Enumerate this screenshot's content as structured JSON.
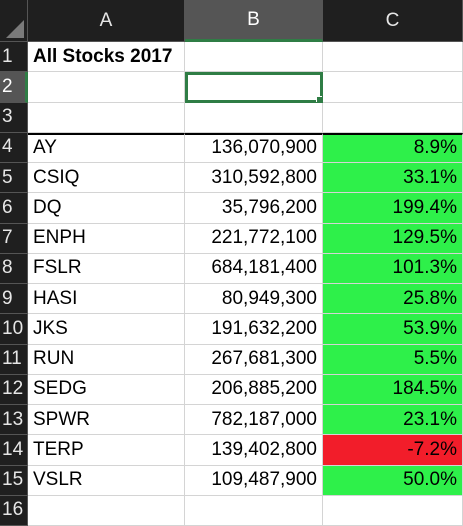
{
  "columns": [
    "A",
    "B",
    "C"
  ],
  "row_numbers": [
    "1",
    "2",
    "3",
    "4",
    "5",
    "6",
    "7",
    "8",
    "9",
    "10",
    "11",
    "12",
    "13",
    "14",
    "15",
    "16"
  ],
  "title": "All Stocks 2017",
  "selected_cell": "B2",
  "stocks": [
    {
      "ticker": "AY",
      "volume": "136,070,900",
      "return": "8.9%",
      "status": "positive"
    },
    {
      "ticker": "CSIQ",
      "volume": "310,592,800",
      "return": "33.1%",
      "status": "positive"
    },
    {
      "ticker": "DQ",
      "volume": "35,796,200",
      "return": "199.4%",
      "status": "positive"
    },
    {
      "ticker": "ENPH",
      "volume": "221,772,100",
      "return": "129.5%",
      "status": "positive"
    },
    {
      "ticker": "FSLR",
      "volume": "684,181,400",
      "return": "101.3%",
      "status": "positive"
    },
    {
      "ticker": "HASI",
      "volume": "80,949,300",
      "return": "25.8%",
      "status": "positive"
    },
    {
      "ticker": "JKS",
      "volume": "191,632,200",
      "return": "53.9%",
      "status": "positive"
    },
    {
      "ticker": "RUN",
      "volume": "267,681,300",
      "return": "5.5%",
      "status": "positive"
    },
    {
      "ticker": "SEDG",
      "volume": "206,885,200",
      "return": "184.5%",
      "status": "positive"
    },
    {
      "ticker": "SPWR",
      "volume": "782,187,000",
      "return": "23.1%",
      "status": "positive"
    },
    {
      "ticker": "TERP",
      "volume": "139,402,800",
      "return": "-7.2%",
      "status": "negative"
    },
    {
      "ticker": "VSLR",
      "volume": "109,487,900",
      "return": "50.0%",
      "status": "positive"
    }
  ],
  "colors": {
    "positive": "#2ef04a",
    "negative": "#f21d2a",
    "header_bg": "#1f1f1f",
    "selection": "#2f7d45"
  }
}
